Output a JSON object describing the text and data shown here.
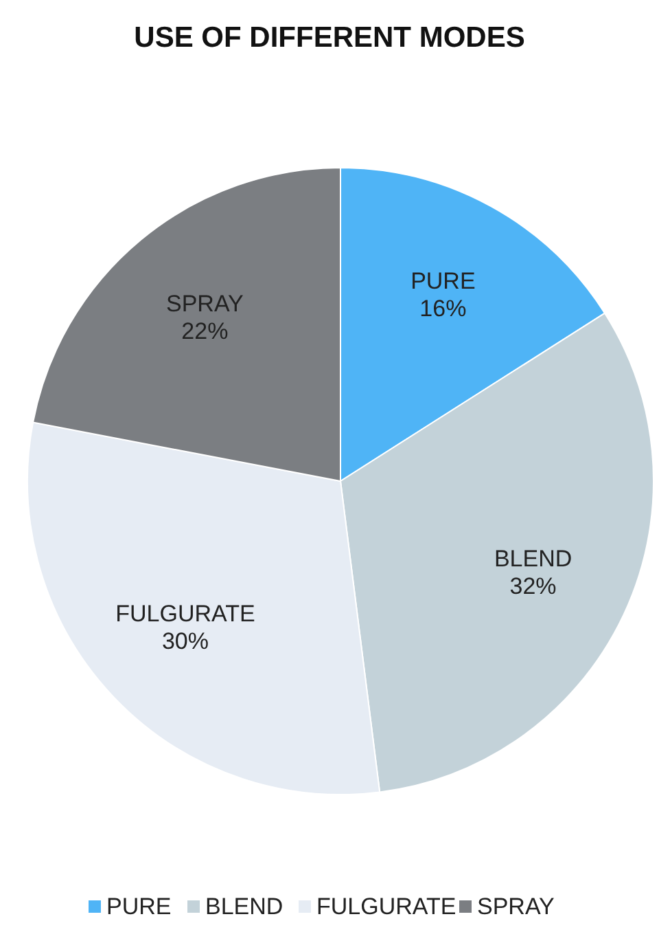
{
  "chart_data": {
    "type": "pie",
    "title": "USE OF DIFFERENT MODES",
    "categories": [
      "PURE",
      "BLEND",
      "FULGURATE",
      "SPRAY"
    ],
    "values": [
      16,
      32,
      30,
      22
    ],
    "value_labels": [
      "16%",
      "32%",
      "30%",
      "22%"
    ],
    "colors": [
      "#4fb4f6",
      "#c3d2d9",
      "#e6ecf4",
      "#7b7e82"
    ],
    "legend": "bottom"
  }
}
